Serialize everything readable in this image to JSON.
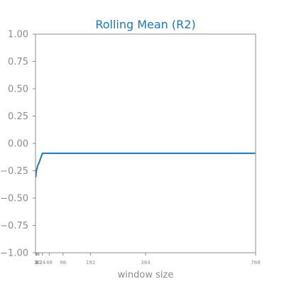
{
  "chart_data": {
    "type": "line",
    "title": "Rolling Mean (R2)",
    "xlabel": "window size",
    "ylabel": "",
    "xlim": [
      0,
      768
    ],
    "ylim": [
      -1.0,
      1.0
    ],
    "x_ticks": [
      1,
      2,
      4,
      8,
      12,
      24,
      48,
      96,
      192,
      384,
      768
    ],
    "x_tick_labels": [
      "1",
      "2",
      "4",
      "8",
      "12",
      "24",
      "48",
      "96",
      "192",
      "384",
      "768"
    ],
    "y_ticks": [
      1.0,
      0.75,
      0.5,
      0.25,
      0.0,
      -0.25,
      -0.5,
      -0.75,
      -1.0
    ],
    "y_tick_labels": [
      "1.00",
      "0.75",
      "0.50",
      "0.25",
      "0.00",
      "−0.25",
      "−0.50",
      "−0.75",
      "−1.00"
    ],
    "grid": false,
    "color": "#1f77b4",
    "series": [
      {
        "x": [
          1,
          2,
          4,
          8,
          12,
          24,
          48,
          96,
          192,
          384,
          768
        ],
        "y": [
          -0.31,
          -0.28,
          -0.24,
          -0.2,
          -0.18,
          -0.09,
          -0.09,
          -0.09,
          -0.09,
          -0.09,
          -0.09
        ]
      }
    ]
  }
}
